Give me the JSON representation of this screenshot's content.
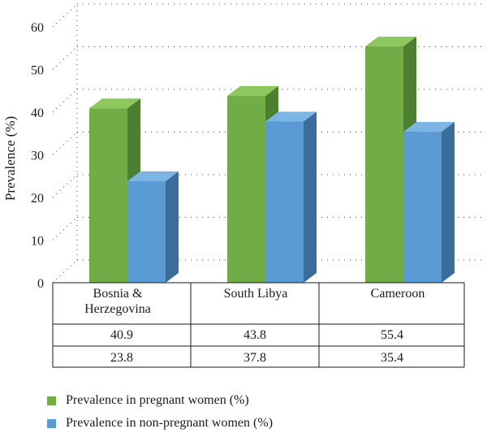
{
  "chart_data": {
    "type": "bar",
    "categories": [
      "Bosnia & Herzegovina",
      "South Libya",
      "Cameroon"
    ],
    "series": [
      {
        "name": "Prevalence in pregnant women (%)",
        "values": [
          40.9,
          43.8,
          55.4
        ],
        "color": "#70ad47"
      },
      {
        "name": "Prevalence in non-pregnant women (%)",
        "values": [
          23.8,
          37.8,
          35.4
        ],
        "color": "#5b9bd5"
      }
    ],
    "ylabel": "Prevalence (%)",
    "ylim": [
      0,
      60
    ],
    "yticks": [
      "0",
      "10",
      "20",
      "30",
      "40",
      "50",
      "60"
    ],
    "grid": true,
    "legend": "bottom",
    "data_table": {
      "headers": [
        "Bosnia &\nHerzegovina",
        "South Libya",
        "Cameroon"
      ],
      "rows": [
        [
          "40.9",
          "43.8",
          "55.4"
        ],
        [
          "23.8",
          "37.8",
          "35.4"
        ]
      ]
    }
  }
}
